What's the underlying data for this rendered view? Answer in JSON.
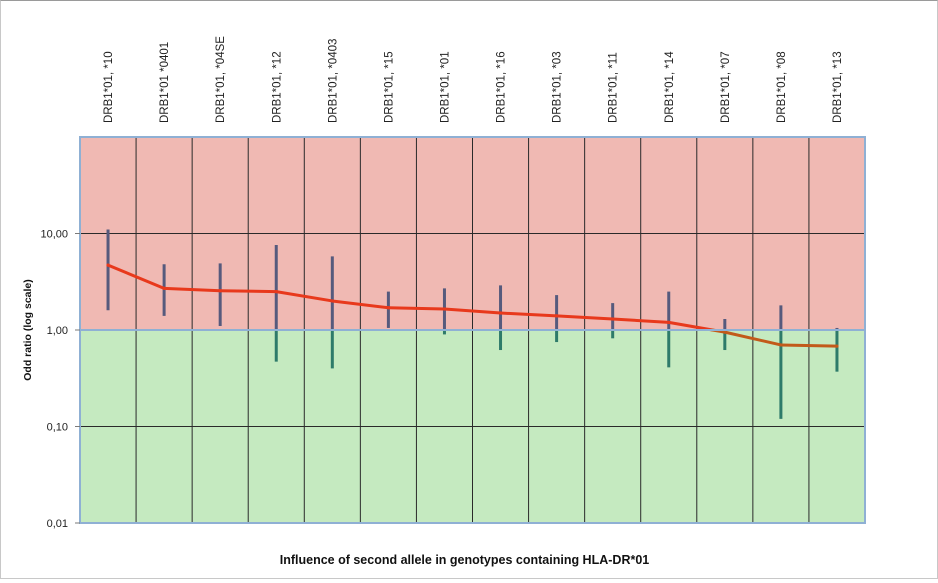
{
  "chart_data": {
    "type": "line",
    "xlabel": "Influence of second allele in genotypes containing HLA-DR*01",
    "ylabel": "Odd ratio (log scale)",
    "y_scale": "log",
    "ylim": [
      0.01,
      100
    ],
    "yticks": [
      {
        "value": 0.01,
        "label": "0,01"
      },
      {
        "value": 0.1,
        "label": "0,10"
      },
      {
        "value": 1,
        "label": "1,00"
      },
      {
        "value": 10,
        "label": "10,00"
      }
    ],
    "reference_line": 1,
    "categories": [
      "DRB1*01, *10",
      "DRB1*01 *0401",
      "DRB1*01, *04SE",
      "DRB1*01, *12",
      "DRB1*01, *0403",
      "DRB1*01, *15",
      "DRB1*01, *01",
      "DRB1*01, *16",
      "DRB1*01, *03",
      "DRB1*01, *11",
      "DRB1*01, *14",
      "DRB1*01, *07",
      "DRB1*01, *08",
      "DRB1*01, *13"
    ],
    "values": [
      4.7,
      2.7,
      2.55,
      2.5,
      2.0,
      1.7,
      1.65,
      1.5,
      1.4,
      1.3,
      1.2,
      0.95,
      0.7,
      0.68
    ],
    "ci_low": [
      1.6,
      1.4,
      1.1,
      0.47,
      0.4,
      1.05,
      0.9,
      0.62,
      0.75,
      0.82,
      0.41,
      0.62,
      0.12,
      0.37
    ],
    "ci_high": [
      11.0,
      4.8,
      4.9,
      7.6,
      5.8,
      2.5,
      2.7,
      2.9,
      2.3,
      1.9,
      2.5,
      1.3,
      1.8,
      1.05
    ],
    "grid": true,
    "regions": [
      {
        "name": "risk",
        "range": [
          1,
          100
        ],
        "color": "#f0b9b3"
      },
      {
        "name": "protective",
        "range": [
          0.01,
          1
        ],
        "color": "#c5eac0"
      }
    ],
    "colors": {
      "line_above": "#e8391c",
      "line_below": "#c25a1a",
      "ci_above": "#565a7d",
      "ci_below": "#2e7b6a",
      "grid": "#2a2a2a",
      "frame": "#8fb0d4"
    }
  }
}
